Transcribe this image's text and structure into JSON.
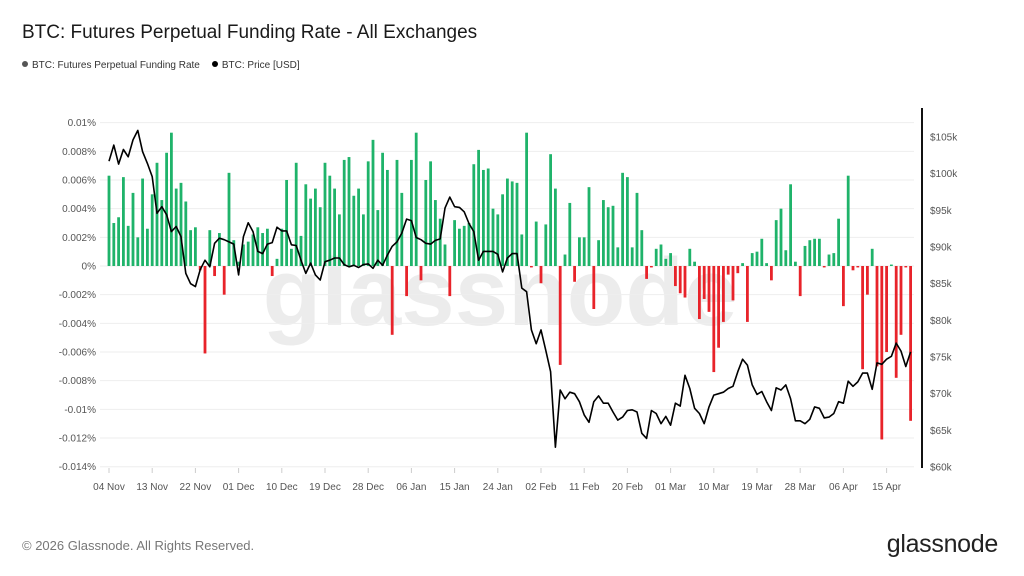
{
  "header": {
    "title": "BTC: Futures Perpetual Funding Rate - All Exchanges"
  },
  "legend": [
    {
      "label": "BTC: Futures Perpetual Funding Rate",
      "color": "#555555"
    },
    {
      "label": "BTC: Price [USD]",
      "color": "#000000"
    }
  ],
  "footer": {
    "copyright": "© 2026 Glassnode. All Rights Reserved.",
    "logo": "glassnode",
    "watermark": "glassnode"
  },
  "chart_data": {
    "type": "bar+line",
    "title": "BTC: Futures Perpetual Funding Rate - All Exchanges",
    "colors": {
      "positive": "#1fb36a",
      "negative": "#e8232a",
      "price": "#000000",
      "grid": "#eeeeee"
    },
    "grid": true,
    "legend_placement": "top-left",
    "y_left": {
      "unit": "%",
      "range": [
        -0.014,
        0.01
      ],
      "ticks": [
        {
          "v": 0.01,
          "label": "0.01%"
        },
        {
          "v": 0.008,
          "label": "0.008%"
        },
        {
          "v": 0.006,
          "label": "0.006%"
        },
        {
          "v": 0.004,
          "label": "0.004%"
        },
        {
          "v": 0.002,
          "label": "0.002%"
        },
        {
          "v": 0,
          "label": "0%"
        },
        {
          "v": -0.002,
          "label": "-0.002%"
        },
        {
          "v": -0.004,
          "label": "-0.004%"
        },
        {
          "v": -0.006,
          "label": "-0.006%"
        },
        {
          "v": -0.008,
          "label": "-0.008%"
        },
        {
          "v": -0.01,
          "label": "-0.01%"
        },
        {
          "v": -0.012,
          "label": "-0.012%"
        },
        {
          "v": -0.014,
          "label": "-0.014%"
        }
      ]
    },
    "y_right": {
      "unit": "USD thousands",
      "range": [
        60,
        108
      ],
      "ticks": [
        {
          "v": 105,
          "label": "$105k"
        },
        {
          "v": 100,
          "label": "$100k"
        },
        {
          "v": 95,
          "label": "$95k"
        },
        {
          "v": 90,
          "label": "$90k"
        },
        {
          "v": 85,
          "label": "$85k"
        },
        {
          "v": 80,
          "label": "$80k"
        },
        {
          "v": 75,
          "label": "$75k"
        },
        {
          "v": 70,
          "label": "$70k"
        },
        {
          "v": 65,
          "label": "$65k"
        },
        {
          "v": 60,
          "label": "$60k"
        }
      ]
    },
    "x_ticks": [
      {
        "date": "2025-11-04",
        "label": "04 Nov"
      },
      {
        "date": "2025-11-13",
        "label": "13 Nov"
      },
      {
        "date": "2025-11-22",
        "label": "22 Nov"
      },
      {
        "date": "2025-12-01",
        "label": "01 Dec"
      },
      {
        "date": "2025-12-10",
        "label": "10 Dec"
      },
      {
        "date": "2025-12-19",
        "label": "19 Dec"
      },
      {
        "date": "2025-12-28",
        "label": "28 Dec"
      },
      {
        "date": "2026-01-06",
        "label": "06 Jan"
      },
      {
        "date": "2026-01-15",
        "label": "15 Jan"
      },
      {
        "date": "2026-01-24",
        "label": "24 Jan"
      },
      {
        "date": "2026-02-02",
        "label": "02 Feb"
      },
      {
        "date": "2026-02-11",
        "label": "11 Feb"
      },
      {
        "date": "2026-02-20",
        "label": "20 Feb"
      },
      {
        "date": "2026-03-01",
        "label": "01 Mar"
      },
      {
        "date": "2026-03-10",
        "label": "10 Mar"
      },
      {
        "date": "2026-03-19",
        "label": "19 Mar"
      },
      {
        "date": "2026-03-28",
        "label": "28 Mar"
      },
      {
        "date": "2026-04-06",
        "label": "06 Apr"
      },
      {
        "date": "2026-04-15",
        "label": "15 Apr"
      }
    ],
    "x_range": [
      "2025-11-04",
      "2026-04-20"
    ],
    "series": [
      {
        "name": "BTC: Futures Perpetual Funding Rate",
        "type": "bar",
        "values": [
          0.0063,
          0.003,
          0.0034,
          0.0062,
          0.0028,
          0.0051,
          0.002,
          0.0061,
          0.0026,
          0.005,
          0.0072,
          0.0046,
          0.0079,
          0.0093,
          0.0054,
          0.0058,
          0.0045,
          0.0025,
          0.0027,
          -0.0003,
          -0.0061,
          0.0025,
          -0.0007,
          0.0023,
          -0.002,
          0.0065,
          0.0018,
          0.0003,
          0.0015,
          0.0017,
          0.0022,
          0.0027,
          0.0023,
          0.0026,
          -0.0007,
          0.0005,
          0.0026,
          0.006,
          0.0012,
          0.0072,
          0.0021,
          0.0057,
          0.0047,
          0.0054,
          0.0041,
          0.0072,
          0.0063,
          0.0054,
          0.0036,
          0.0074,
          0.0076,
          0.0049,
          0.0054,
          0.0036,
          0.0073,
          0.0088,
          0.0039,
          0.0079,
          0.0067,
          -0.0048,
          0.0074,
          0.0051,
          -0.0021,
          0.0074,
          0.0093,
          -0.001,
          0.006,
          0.0073,
          0.0046,
          0.0033,
          0.0015,
          -0.0021,
          0.0032,
          0.0026,
          0.0028,
          0.003,
          0.0071,
          0.0081,
          0.0067,
          0.0068,
          0.004,
          0.0036,
          0.005,
          0.0061,
          0.0059,
          0.0058,
          0.0022,
          0.0093,
          -0.0001,
          0.0031,
          -0.0012,
          0.0029,
          0.0078,
          0.0054,
          -0.0069,
          0.0008,
          0.0044,
          -0.0011,
          0.002,
          0.002,
          0.0055,
          -0.003,
          0.0018,
          0.0046,
          0.0041,
          0.0042,
          0.0013,
          0.0065,
          0.0062,
          0.0013,
          0.0051,
          0.0025,
          -0.0009,
          -0.0001,
          0.0012,
          0.0015,
          0.0005,
          0.0009,
          -0.0014,
          -0.0019,
          -0.0022,
          0.0012,
          0.0003,
          -0.0037,
          -0.0023,
          -0.0032,
          -0.0074,
          -0.0057,
          -0.0039,
          -0.0006,
          -0.0024,
          -0.0005,
          0.0002,
          -0.0039,
          0.0009,
          0.001,
          0.0019,
          0.0002,
          -0.001,
          0.0032,
          0.004,
          0.0011,
          0.0057,
          0.0003,
          -0.0021,
          0.0014,
          0.0018,
          0.0019,
          0.0019,
          -0.0001,
          0.0008,
          0.0009,
          0.0033,
          -0.0028,
          0.0063,
          -0.0003,
          -0.0001,
          -0.0072,
          -0.002,
          0.0012,
          -0.007,
          -0.0121,
          -0.006,
          0.0001,
          -0.0078,
          -0.0048,
          -0.0001,
          -0.0108
        ]
      },
      {
        "name": "BTC: Price [USD]",
        "type": "line",
        "unit": "USD thousands",
        "values": [
          101.7,
          103.9,
          101.3,
          103.3,
          102.3,
          104.6,
          105.9,
          103.0,
          101.4,
          99.6,
          94.6,
          95.5,
          94.4,
          92.1,
          92.8,
          91.4,
          86.4,
          85.0,
          84.6,
          86.9,
          88.2,
          87.3,
          90.5,
          91.2,
          91.0,
          90.7,
          90.4,
          86.2,
          91.4,
          93.3,
          92.1,
          89.4,
          89.1,
          90.4,
          90.6,
          92.7,
          92.2,
          92.2,
          90.3,
          90.2,
          88.2,
          86.4,
          87.8,
          86.2,
          85.5,
          88.0,
          88.2,
          88.5,
          88.5,
          87.6,
          87.3,
          87.5,
          87.2,
          87.6,
          87.7,
          87.1,
          88.2,
          87.5,
          88.9,
          90.1,
          90.7,
          91.9,
          93.8,
          93.6,
          91.3,
          91.0,
          90.5,
          90.4,
          90.9,
          91.1,
          95.3,
          96.8,
          95.5,
          95.4,
          94.8,
          93.2,
          92.1,
          88.2,
          89.4,
          89.4,
          89.4,
          89.0,
          86.6,
          88.5,
          89.1,
          89.1,
          84.4,
          83.9,
          78.7,
          76.8,
          78.7,
          75.9,
          73.0,
          62.7,
          70.5,
          69.3,
          70.2,
          70.0,
          68.9,
          67.1,
          66.1,
          68.9,
          69.7,
          68.7,
          68.7,
          67.5,
          66.4,
          66.8,
          67.7,
          67.8,
          67.5,
          64.6,
          63.9,
          67.7,
          67.3,
          65.9,
          66.9,
          65.7,
          68.7,
          68.3,
          72.5,
          70.7,
          68.0,
          67.3,
          65.9,
          68.2,
          69.8,
          70.0,
          70.2,
          70.7,
          71.0,
          73.0,
          74.7,
          73.9,
          71.2,
          69.9,
          70.3,
          68.9,
          67.7,
          70.8,
          70.5,
          71.2,
          69.3,
          66.3,
          66.3,
          65.9,
          66.5,
          68.2,
          68.0,
          66.7,
          66.8,
          67.3,
          68.9,
          68.7,
          71.7,
          71.0,
          71.6,
          72.8,
          72.8,
          70.6,
          74.2,
          74.0,
          74.7,
          75.1,
          76.9,
          75.8,
          73.7,
          75.7
        ]
      }
    ]
  }
}
